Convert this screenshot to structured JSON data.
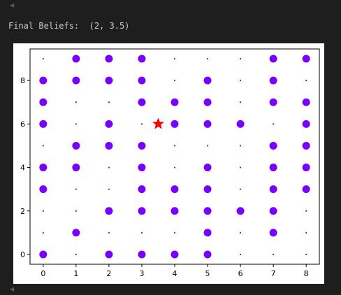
{
  "output": {
    "label": "Final Beliefs:",
    "value": "(2, 3.5)"
  },
  "icons": {
    "scroll_up": "triangle-left-icon",
    "scroll_down": "triangle-left-icon"
  },
  "chart_data": {
    "type": "scatter",
    "title": "",
    "xlabel": "",
    "ylabel": "",
    "xlim": [
      -0.4,
      8.4
    ],
    "ylim": [
      -0.45,
      9.45
    ],
    "xticks": [
      0,
      1,
      2,
      3,
      4,
      5,
      6,
      7,
      8
    ],
    "yticks": [
      0,
      2,
      4,
      6,
      8
    ],
    "grid": false,
    "legend": "none",
    "point_color": "#7700ff",
    "size_levels": {
      "large": 3,
      "small": 1
    },
    "grid_points": [
      [
        2,
        1,
        1,
        2,
        2,
        1,
        2,
        2,
        2,
        1
      ],
      [
        1,
        2,
        1,
        1,
        2,
        2,
        1,
        1,
        2,
        2
      ],
      [
        2,
        1,
        2,
        1,
        1,
        2,
        2,
        1,
        2,
        2
      ],
      [
        2,
        1,
        2,
        2,
        2,
        2,
        1,
        2,
        2,
        2
      ],
      [
        2,
        1,
        2,
        2,
        1,
        1,
        2,
        2,
        1,
        1
      ],
      [
        2,
        2,
        2,
        2,
        2,
        1,
        2,
        2,
        2,
        1
      ],
      [
        1,
        1,
        2,
        1,
        1,
        1,
        2,
        1,
        1,
        1
      ],
      [
        1,
        2,
        2,
        2,
        2,
        2,
        1,
        2,
        2,
        2
      ],
      [
        1,
        1,
        1,
        2,
        2,
        2,
        2,
        2,
        1,
        2
      ]
    ],
    "marker": {
      "x": 3.5,
      "y": 6,
      "shape": "star",
      "color": "#ff0000"
    }
  }
}
